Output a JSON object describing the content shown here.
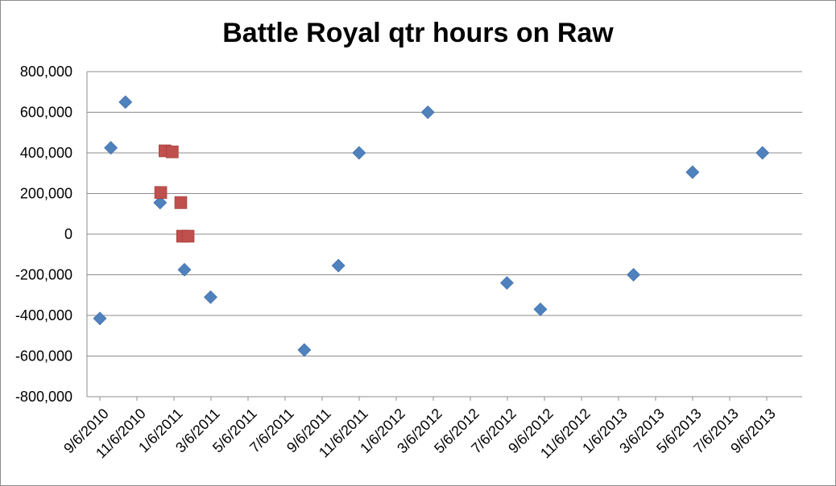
{
  "chart_data": {
    "type": "scatter",
    "title": "Battle Royal qtr hours on Raw",
    "xlabel": "",
    "ylabel": "",
    "x_range": [
      "2010-09-06",
      "2013-09-06"
    ],
    "ylim": [
      -800000,
      800000
    ],
    "y_tick_step": 200000,
    "y_tick_labels": [
      "800,000",
      "600,000",
      "400,000",
      "200,000",
      "0",
      "-200,000",
      "-400,000",
      "-600,000",
      "-800,000"
    ],
    "x_tick_labels": [
      "9/6/2010",
      "11/6/2010",
      "1/6/2011",
      "3/6/2011",
      "5/6/2011",
      "7/6/2011",
      "9/6/2011",
      "11/6/2011",
      "1/6/2012",
      "3/6/2012",
      "5/6/2012",
      "7/6/2012",
      "9/6/2012",
      "11/6/2012",
      "1/6/2013",
      "3/6/2013",
      "5/6/2013",
      "7/6/2013",
      "9/6/2013"
    ],
    "grid": true,
    "legend": "none",
    "series": [
      {
        "marker": "diamond",
        "color": "#4f81bd",
        "points": [
          {
            "x": "2010-09-06",
            "y": -415000
          },
          {
            "x": "2010-09-24",
            "y": 425000
          },
          {
            "x": "2010-10-18",
            "y": 650000
          },
          {
            "x": "2010-12-14",
            "y": 155000
          },
          {
            "x": "2011-01-23",
            "y": -175000
          },
          {
            "x": "2011-03-07",
            "y": -310000
          },
          {
            "x": "2011-08-08",
            "y": -570000
          },
          {
            "x": "2011-10-03",
            "y": -155000
          },
          {
            "x": "2011-11-06",
            "y": 400000
          },
          {
            "x": "2012-02-27",
            "y": 600000
          },
          {
            "x": "2012-07-06",
            "y": -240000
          },
          {
            "x": "2012-08-30",
            "y": -370000
          },
          {
            "x": "2013-01-30",
            "y": -200000
          },
          {
            "x": "2013-05-07",
            "y": 305000
          },
          {
            "x": "2013-08-30",
            "y": 400000
          }
        ]
      },
      {
        "marker": "square",
        "color": "#c0504d",
        "points": [
          {
            "x": "2010-12-15",
            "y": 205000
          },
          {
            "x": "2010-12-22",
            "y": 410000
          },
          {
            "x": "2011-01-03",
            "y": 405000
          },
          {
            "x": "2011-01-17",
            "y": 155000
          },
          {
            "x": "2011-01-20",
            "y": -10000
          },
          {
            "x": "2011-01-29",
            "y": -10000
          }
        ]
      }
    ]
  }
}
